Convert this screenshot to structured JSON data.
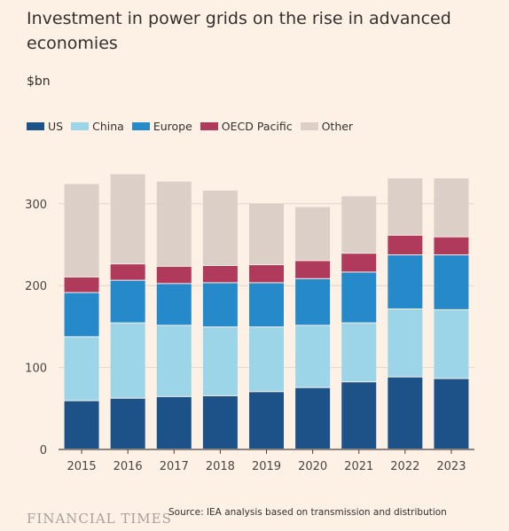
{
  "title": "Investment in power grids on the rise in advanced economies",
  "unit_label": "$bn",
  "source": "Source: IEA analysis based on transmission and distribution",
  "brand": "FINANCIAL TIMES",
  "colors": {
    "US": "#1d5289",
    "China": "#9cd4e8",
    "Europe": "#2689c9",
    "OECD Pacific": "#b03a5b",
    "Other": "#dccfc7"
  },
  "chart_data": {
    "type": "bar",
    "stacked": true,
    "categories": [
      "2015",
      "2016",
      "2017",
      "2018",
      "2019",
      "2020",
      "2021",
      "2022",
      "2023"
    ],
    "series": [
      {
        "name": "US",
        "values": [
          59,
          62,
          64,
          65,
          70,
          75,
          82,
          88,
          86
        ]
      },
      {
        "name": "China",
        "values": [
          78,
          92,
          87,
          84,
          79,
          76,
          72,
          83,
          84
        ]
      },
      {
        "name": "Europe",
        "values": [
          54,
          52,
          51,
          54,
          54,
          57,
          62,
          66,
          67
        ]
      },
      {
        "name": "OECD Pacific",
        "values": [
          19,
          20,
          21,
          21,
          22,
          22,
          23,
          24,
          22
        ]
      },
      {
        "name": "Other",
        "values": [
          114,
          110,
          104,
          92,
          75,
          66,
          70,
          70,
          72
        ]
      }
    ],
    "yticks": [
      0,
      100,
      200,
      300
    ],
    "ylim": [
      0,
      360
    ],
    "ylabel": "$bn",
    "legend": "top-left",
    "grid": true
  }
}
